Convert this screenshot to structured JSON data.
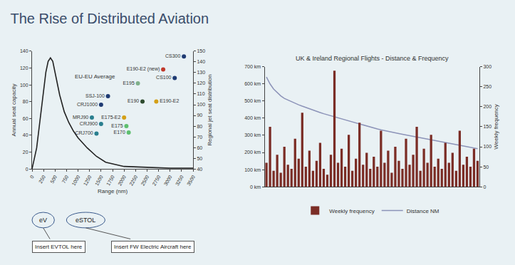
{
  "title": "The Rise of Distributed Aviation",
  "chart_data": [
    {
      "type": "line",
      "xlabel": "Range (nm)",
      "ylabel": "Annual seat capacity",
      "y2label": "Regional jet seat distribution",
      "xlim": [
        0,
        3500
      ],
      "xticks": [
        0,
        250,
        500,
        750,
        1000,
        1250,
        1500,
        1750,
        2000,
        2250,
        2500,
        2750,
        3000,
        3250,
        3500
      ],
      "ylim": [
        0,
        140
      ],
      "yticks": [
        0,
        20,
        40,
        60,
        80,
        100,
        120,
        140
      ],
      "y2lim": [
        40,
        150
      ],
      "y2ticks": [
        40,
        50,
        60,
        70,
        80,
        90,
        100,
        110,
        120,
        130,
        140,
        150
      ],
      "grid": false,
      "series": [
        {
          "name": "EU-EU Average",
          "type": "line",
          "color": "#222222",
          "x": [
            0,
            100,
            200,
            300,
            350,
            400,
            450,
            500,
            600,
            700,
            800,
            900,
            1000,
            1200,
            1400,
            1600,
            2000,
            2500,
            3000,
            3500
          ],
          "values": [
            0,
            25,
            70,
            115,
            128,
            132,
            128,
            115,
            88,
            68,
            55,
            45,
            37,
            25,
            15,
            8,
            3,
            2,
            1,
            1
          ]
        },
        {
          "type": "scatter",
          "axis": "y2",
          "marker": "circle",
          "x": [
            3300,
            2850,
            3100,
            2300,
            1650,
            1500,
            2700,
            2400,
            1300,
            1500,
            2000,
            2050,
            2100,
            1400
          ],
          "values": [
            145,
            133,
            125,
            120,
            108,
            100,
            103,
            103,
            88,
            82,
            88,
            80,
            74,
            73
          ],
          "point_labels": [
            "CS300",
            "E190-E2 (new)",
            "CS100",
            "E195",
            "SSJ-100",
            "CRJ1000",
            "E190-E2",
            "E190",
            "MRJ90",
            "CRJ900",
            "E175-E2",
            "E175",
            "E170",
            "CRJ700"
          ],
          "colors": [
            "#1f3b73",
            "#c0392b",
            "#1f3b73",
            "#7fb08a",
            "#1f3b73",
            "#1f3b73",
            "#d4a017",
            "#2e4a2e",
            "#2a7f8f",
            "#2a7f8f",
            "#d4a017",
            "#5fbf6f",
            "#5fbf6f",
            "#2a7f8f"
          ]
        }
      ],
      "annotations": [
        "eV",
        "eSTOL",
        "Insert EVTOL here",
        "Insert FW Electric Aircraft here"
      ]
    },
    {
      "type": "bar",
      "title": "UK & Ireland Regional Flights - Distance & Frequency",
      "y2label": "Weekly frequency",
      "categories": [
        null,
        null,
        null,
        null,
        null,
        null,
        null,
        null,
        null,
        null,
        null,
        null,
        null,
        null,
        null,
        null,
        null,
        null,
        null,
        null,
        null,
        null,
        null,
        null,
        null,
        null,
        null,
        null,
        null,
        null,
        null,
        null,
        null,
        null,
        null,
        null,
        null,
        null,
        null,
        null,
        null,
        null,
        null,
        null,
        null,
        null,
        null,
        null,
        null,
        null,
        null,
        null,
        null,
        null,
        null,
        null,
        null,
        null,
        null,
        null
      ],
      "ylim": [
        0,
        700
      ],
      "yticks": [
        {
          "value": 0,
          "label": "0 km"
        },
        {
          "value": 100,
          "label": "100 km"
        },
        {
          "value": 200,
          "label": "200 km"
        },
        {
          "value": 300,
          "label": "300 km"
        },
        {
          "value": 400,
          "label": "400 km"
        },
        {
          "value": 500,
          "label": "500 km"
        },
        {
          "value": 600,
          "label": "600 km"
        },
        {
          "value": 700,
          "label": "700 km"
        }
      ],
      "y2lim": [
        0,
        300
      ],
      "y2ticks": [
        0,
        50,
        100,
        150,
        200,
        250,
        300
      ],
      "legend": "bottom",
      "grid": false,
      "series": [
        {
          "name": "Weekly frequency",
          "type": "bar",
          "axis": "y2",
          "color": "#7b2d26",
          "values": [
            60,
            150,
            40,
            80,
            35,
            100,
            55,
            45,
            120,
            70,
            185,
            50,
            90,
            40,
            65,
            110,
            45,
            30,
            80,
            290,
            60,
            95,
            50,
            130,
            40,
            70,
            160,
            55,
            85,
            45,
            75,
            50,
            140,
            60,
            90,
            35,
            100,
            65,
            45,
            120,
            55,
            80,
            150,
            40,
            95,
            60,
            130,
            50,
            70,
            45,
            110,
            60,
            85,
            40,
            140,
            55,
            75,
            50,
            95,
            65
          ]
        },
        {
          "name": "Distance NM",
          "type": "line",
          "color": "#8c93b8",
          "values": [
            640,
            600,
            570,
            550,
            530,
            515,
            505,
            495,
            485,
            478,
            470,
            462,
            455,
            448,
            440,
            433,
            426,
            420,
            413,
            406,
            400,
            394,
            388,
            382,
            376,
            370,
            364,
            358,
            352,
            347,
            342,
            337,
            332,
            327,
            322,
            318,
            314,
            310,
            306,
            302,
            298,
            294,
            290,
            286,
            282,
            278,
            274,
            270,
            266,
            262,
            258,
            254,
            250,
            246,
            242,
            238,
            234,
            230,
            226,
            222
          ]
        }
      ]
    }
  ]
}
